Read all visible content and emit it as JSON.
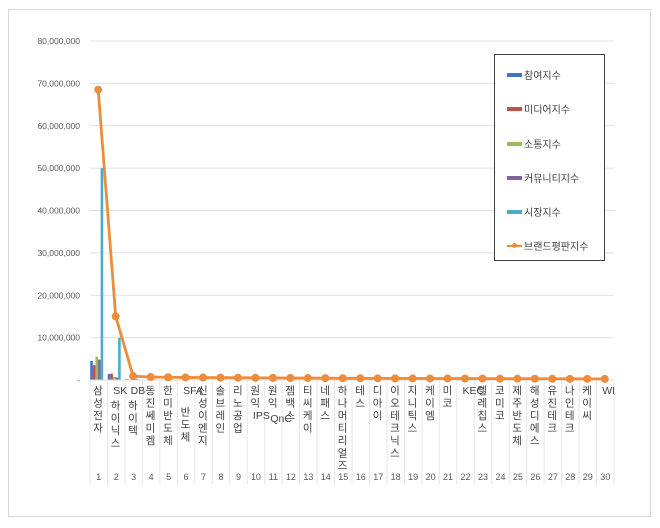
{
  "chart_data": {
    "type": "bar+line",
    "title": "",
    "xlabel": "",
    "ylabel": "",
    "ylim": [
      0,
      80000000
    ],
    "yticks": [
      "-",
      "10,000,000",
      "20,000,000",
      "30,000,000",
      "40,000,000",
      "50,000,000",
      "60,000,000",
      "70,000,000",
      "80,000,000"
    ],
    "grid": true,
    "legend_position": "right",
    "categories": [
      "삼성전자",
      "SK하이닉스",
      "DB하이텍",
      "동진쎄미켐",
      "한미반도체",
      "SFA반도체",
      "신성이엔지",
      "솔브레인",
      "리노공업",
      "원익IPS",
      "원익 QnC",
      "젬백스",
      "티씨케이",
      "네패스",
      "하나머티리얼즈",
      "테스",
      "디아이",
      "이오테크닉스",
      "지니틱스",
      "케이엠",
      "미코",
      "KEC",
      "텔레칩스",
      "코미코",
      "제주반도체",
      "해성디에스",
      "유진테크",
      "나인테크",
      "케이씨",
      "WI"
    ],
    "ranks": [
      "1",
      "2",
      "3",
      "4",
      "5",
      "6",
      "7",
      "8",
      "9",
      "10",
      "11",
      "12",
      "13",
      "14",
      "15",
      "16",
      "17",
      "18",
      "19",
      "20",
      "21",
      "22",
      "23",
      "24",
      "25",
      "26",
      "27",
      "28",
      "29",
      "30"
    ],
    "series": [
      {
        "name": "참여지수",
        "type": "bar",
        "color": "#4472C4",
        "values": [
          4500000,
          1400000,
          200000,
          100000,
          100000,
          80000,
          80000,
          80000,
          80000,
          80000,
          60000,
          60000,
          60000,
          60000,
          60000,
          50000,
          50000,
          50000,
          50000,
          50000,
          40000,
          40000,
          40000,
          40000,
          40000,
          30000,
          30000,
          30000,
          30000,
          30000
        ]
      },
      {
        "name": "미디어지수",
        "type": "bar",
        "color": "#C0504D",
        "values": [
          3500000,
          1500000,
          150000,
          100000,
          100000,
          80000,
          80000,
          80000,
          80000,
          80000,
          60000,
          60000,
          60000,
          60000,
          60000,
          50000,
          50000,
          50000,
          50000,
          50000,
          40000,
          40000,
          40000,
          40000,
          40000,
          30000,
          30000,
          30000,
          30000,
          30000
        ]
      },
      {
        "name": "소통지수",
        "type": "bar",
        "color": "#9BBB59",
        "values": [
          5500000,
          700000,
          100000,
          80000,
          80000,
          60000,
          60000,
          60000,
          60000,
          60000,
          50000,
          50000,
          50000,
          50000,
          50000,
          40000,
          40000,
          40000,
          40000,
          40000,
          30000,
          30000,
          30000,
          30000,
          30000,
          20000,
          20000,
          20000,
          20000,
          20000
        ]
      },
      {
        "name": "커뮤니티지수",
        "type": "bar",
        "color": "#8064A2",
        "values": [
          4800000,
          600000,
          100000,
          80000,
          80000,
          60000,
          60000,
          60000,
          60000,
          60000,
          50000,
          50000,
          50000,
          50000,
          50000,
          40000,
          40000,
          40000,
          40000,
          40000,
          30000,
          30000,
          30000,
          30000,
          30000,
          20000,
          20000,
          20000,
          20000,
          20000
        ]
      },
      {
        "name": "시장지수",
        "type": "bar",
        "color": "#4BACC6",
        "values": [
          50000000,
          10000000,
          300000,
          200000,
          200000,
          150000,
          150000,
          150000,
          150000,
          150000,
          100000,
          100000,
          100000,
          100000,
          100000,
          80000,
          80000,
          80000,
          80000,
          80000,
          60000,
          60000,
          60000,
          60000,
          60000,
          50000,
          50000,
          50000,
          50000,
          50000
        ]
      },
      {
        "name": "브랜드평판지수",
        "type": "line",
        "color": "#ED8D3B",
        "values": [
          68500000,
          15000000,
          900000,
          700000,
          650000,
          600000,
          580000,
          560000,
          540000,
          520000,
          500000,
          480000,
          460000,
          440000,
          420000,
          400000,
          390000,
          380000,
          370000,
          360000,
          350000,
          340000,
          330000,
          320000,
          310000,
          300000,
          290000,
          280000,
          270000,
          260000
        ]
      }
    ]
  }
}
